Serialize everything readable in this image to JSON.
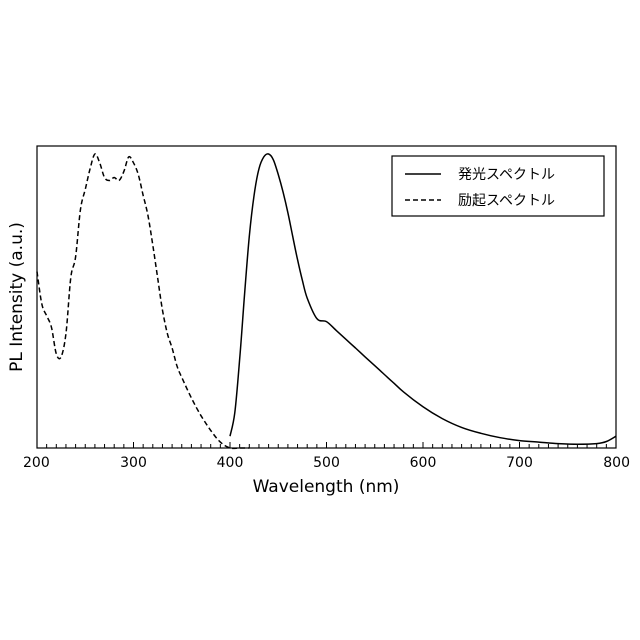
{
  "chart_data": {
    "type": "line",
    "title": "",
    "xlabel": "Wavelength (nm)",
    "ylabel": "PL Intensity (a.u.)",
    "xlim": [
      200,
      800
    ],
    "ylim": [
      0,
      1.0
    ],
    "x_ticks": [
      "200",
      "300",
      "400",
      "500",
      "600",
      "700",
      "800"
    ],
    "grid": false,
    "legend_position": "top-right",
    "series": [
      {
        "name": "発光スペクトル",
        "line_style": "solid",
        "color": "#000000",
        "x": [
          400,
          405,
          410,
          415,
          420,
          425,
          430,
          435,
          440,
          445,
          450,
          455,
          460,
          465,
          470,
          475,
          480,
          490,
          500,
          510,
          520,
          530,
          540,
          550,
          560,
          570,
          580,
          600,
          620,
          640,
          660,
          680,
          700,
          720,
          740,
          760,
          780,
          790,
          800
        ],
        "y": [
          0.04,
          0.12,
          0.3,
          0.52,
          0.72,
          0.86,
          0.95,
          0.99,
          1.0,
          0.98,
          0.93,
          0.87,
          0.8,
          0.72,
          0.64,
          0.57,
          0.51,
          0.44,
          0.43,
          0.4,
          0.37,
          0.34,
          0.31,
          0.28,
          0.25,
          0.22,
          0.19,
          0.14,
          0.1,
          0.07,
          0.05,
          0.035,
          0.025,
          0.02,
          0.015,
          0.013,
          0.015,
          0.022,
          0.04
        ]
      },
      {
        "name": "励起スペクトル",
        "line_style": "dashed",
        "color": "#000000",
        "x": [
          200,
          205,
          210,
          215,
          220,
          225,
          230,
          235,
          240,
          245,
          250,
          255,
          260,
          265,
          270,
          275,
          280,
          285,
          290,
          295,
          300,
          305,
          310,
          315,
          320,
          325,
          330,
          335,
          340,
          345,
          350,
          360,
          370,
          380,
          390,
          400,
          410,
          420
        ],
        "y": [
          0.6,
          0.49,
          0.45,
          0.41,
          0.32,
          0.31,
          0.39,
          0.58,
          0.65,
          0.81,
          0.88,
          0.95,
          1.0,
          0.97,
          0.92,
          0.91,
          0.92,
          0.91,
          0.94,
          0.99,
          0.97,
          0.93,
          0.86,
          0.79,
          0.69,
          0.58,
          0.47,
          0.39,
          0.34,
          0.28,
          0.24,
          0.17,
          0.11,
          0.06,
          0.02,
          0.0,
          0.0,
          0.0
        ]
      }
    ]
  }
}
